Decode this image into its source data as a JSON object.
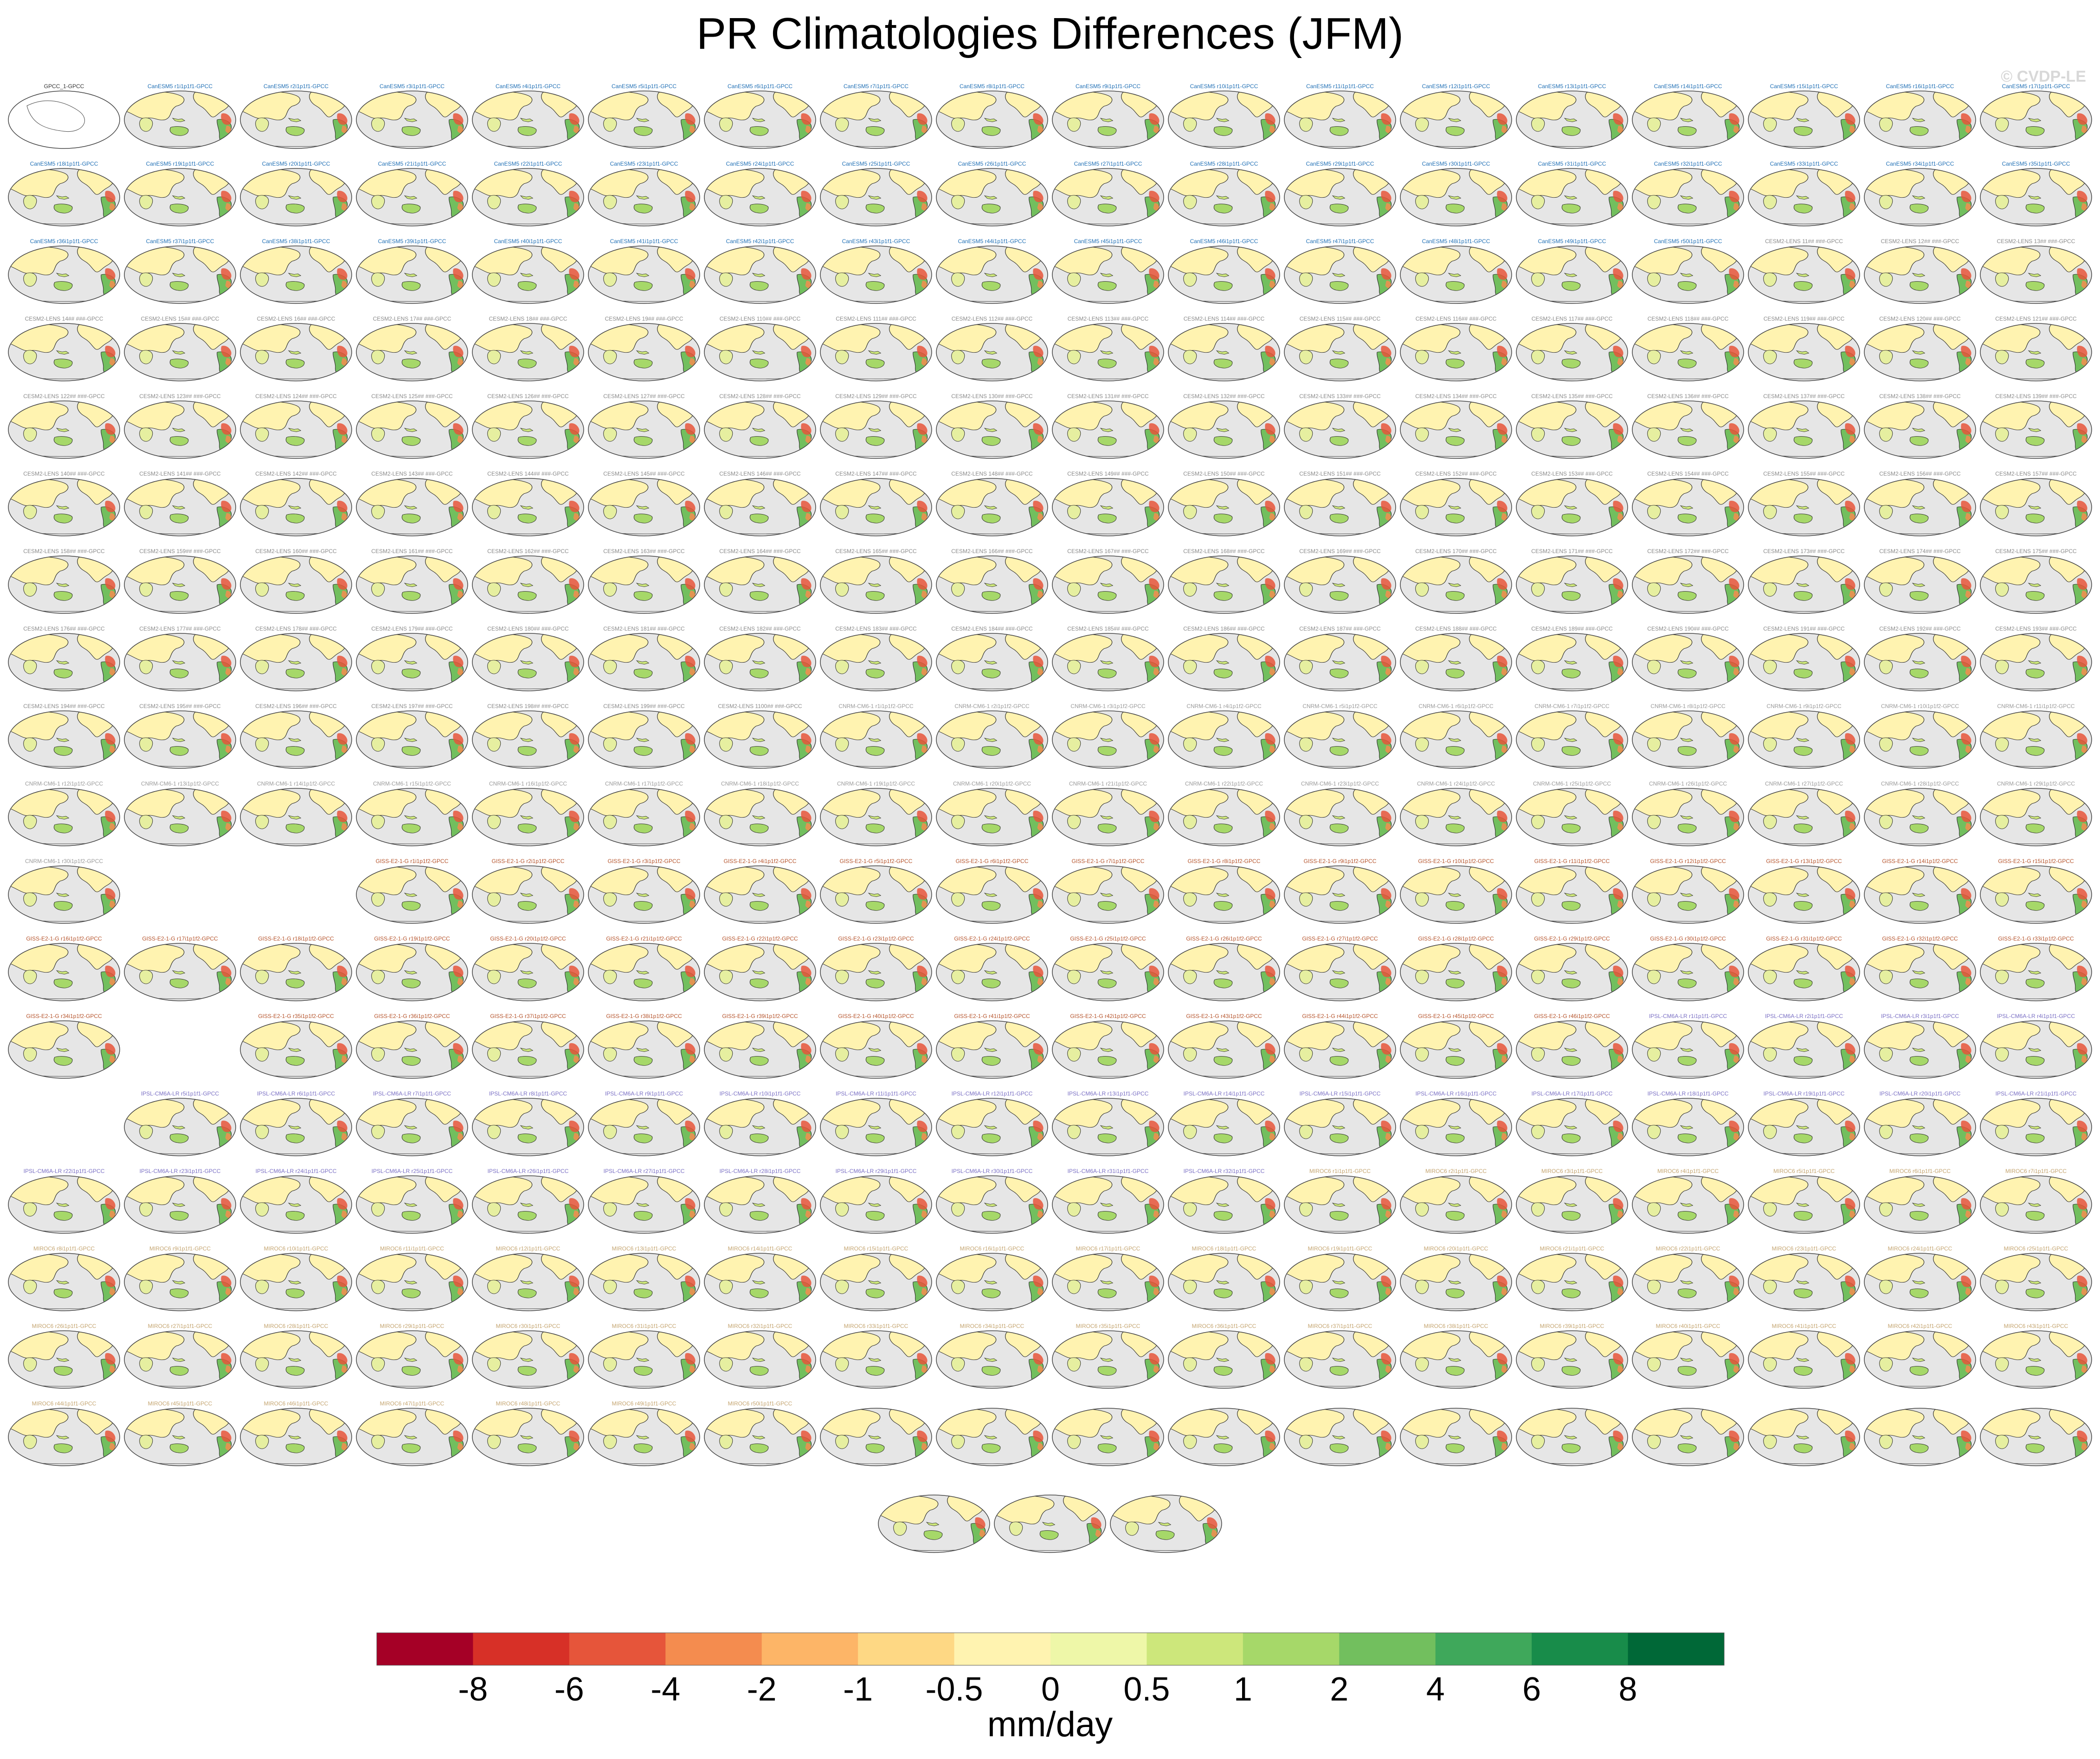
{
  "title": "PR Climatologies Differences (JFM)",
  "watermark": "© CVDP-LE",
  "reference_panel_title": "GPCC_1-GPCC",
  "model_groups": [
    {
      "name": "CanESM5",
      "panel_title_pattern": "CanESM5 r#i1p1f1-GPCC",
      "members": 50,
      "color": "#1f6fb5"
    },
    {
      "name": "CESM2-LENS",
      "panel_title_pattern": "CESM2-LENS 1### ###-GPCC",
      "members": 100,
      "color": "#8a8a8a"
    },
    {
      "name": "CNRM-CM6-1",
      "panel_title_pattern": "CNRM-CM6-1 r#i1p1f2-GPCC",
      "members": 30,
      "color": "#9a9a9a"
    },
    {
      "name": "GISS-E2-1-G",
      "panel_title_pattern": "GISS-E2-1-G r#i1p1f2-GPCC",
      "members": 46,
      "color": "#b5532b"
    },
    {
      "name": "IPSL-CM6A-LR",
      "panel_title_pattern": "IPSL-CM6A-LR r#i1p1f1-GPCC",
      "members": 32,
      "color": "#7a6fc4"
    },
    {
      "name": "MIROC6",
      "panel_title_pattern": "MIROC6 r#i1p1f1-GPCC",
      "members": 50,
      "color": "#c4a46f"
    }
  ],
  "chart_data": {
    "type": "heatmap",
    "title": "PR Climatologies Differences (JFM)",
    "projection": "Robinson (Pacific-centered)",
    "panel_grid": {
      "columns": 18,
      "rows": 18,
      "extra_last_row": 3
    },
    "colorbar": {
      "label": "mm/day",
      "tick_labels": [
        "-8",
        "-6",
        "-4",
        "-2",
        "-1",
        "-0.5",
        "0",
        "0.5",
        "1",
        "2",
        "4",
        "6",
        "8"
      ],
      "levels": [
        -8,
        -6,
        -4,
        -2,
        -1,
        -0.5,
        0,
        0.5,
        1,
        2,
        4,
        6,
        8
      ],
      "colors": [
        "#a50026",
        "#d73027",
        "#e6553a",
        "#f48c4f",
        "#fdb567",
        "#fed884",
        "#fff3b0",
        "#eef7a8",
        "#cde77b",
        "#a6d869",
        "#72bf5e",
        "#3fa85b",
        "#188c4a",
        "#006837"
      ]
    }
  }
}
